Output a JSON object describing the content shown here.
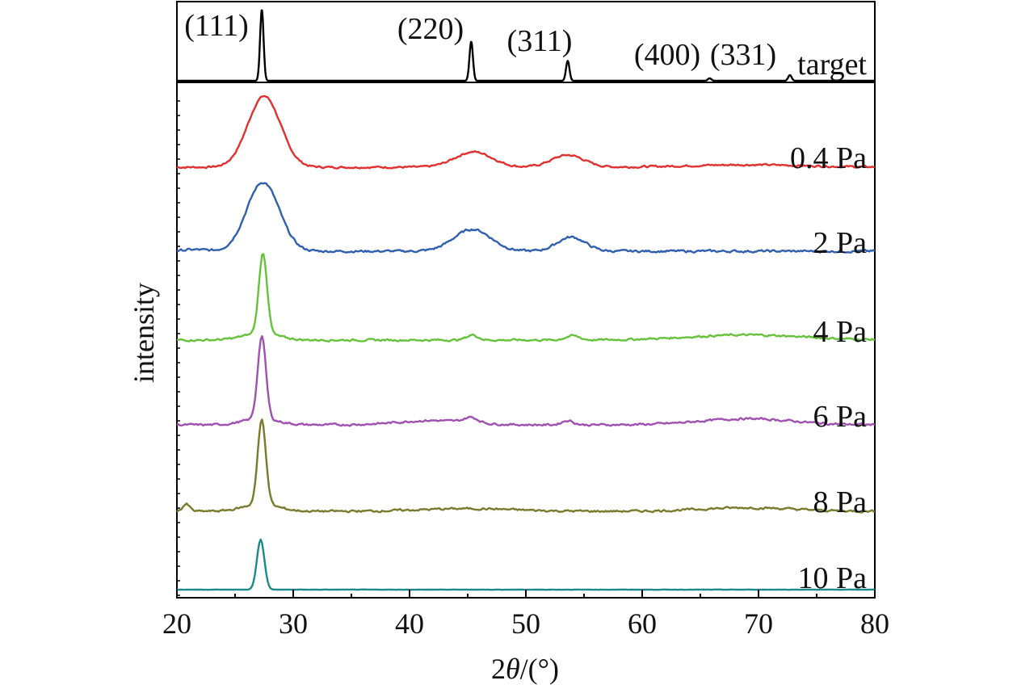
{
  "chart_data": {
    "type": "line",
    "title": "",
    "xlabel_prefix": "2",
    "xlabel_symbol": "θ",
    "xlabel_suffix": "/(°)",
    "ylabel": "intensity",
    "xlim": [
      20,
      80
    ],
    "x_ticks": [
      20,
      30,
      40,
      50,
      60,
      70,
      80
    ],
    "x_tick_labels": [
      "20",
      "30",
      "40",
      "50",
      "60",
      "70",
      "80"
    ],
    "peak_labels": [
      {
        "text": "(111)",
        "x": 27.3
      },
      {
        "text": "(220)",
        "x": 45.3
      },
      {
        "text": "(311)",
        "x": 53.6
      },
      {
        "text": "(400)",
        "x": 65.8
      },
      {
        "text": "(331)",
        "x": 72.7
      }
    ],
    "series": [
      {
        "name": "target",
        "color": "#000000",
        "baseline": 0.0,
        "noise": 0.0,
        "peaks": [
          [
            27.3,
            10.0,
            0.15
          ],
          [
            45.3,
            5.5,
            0.15
          ],
          [
            53.6,
            2.8,
            0.15
          ],
          [
            65.8,
            0.35,
            0.15
          ],
          [
            72.7,
            0.8,
            0.15
          ]
        ],
        "humps": []
      },
      {
        "name": "0.4 Pa",
        "color": "#e03030",
        "baseline": 0.0,
        "noise": 0.2,
        "peaks": [
          [
            27.5,
            8.8,
            1.4
          ],
          [
            45.5,
            1.9,
            1.6
          ],
          [
            53.6,
            1.5,
            1.4
          ]
        ],
        "humps": [
          [
            69.0,
            0.3,
            5.0
          ]
        ]
      },
      {
        "name": "2 Pa",
        "color": "#2f5fae",
        "baseline": 0.0,
        "noise": 0.25,
        "peaks": [
          [
            27.4,
            8.8,
            1.4
          ],
          [
            45.4,
            2.8,
            1.6
          ],
          [
            53.9,
            1.8,
            1.2
          ]
        ],
        "humps": [
          [
            21.5,
            0.2,
            1.0
          ]
        ]
      },
      {
        "name": "4 Pa",
        "color": "#66c23a",
        "baseline": 0.0,
        "noise": 0.2,
        "peaks": [
          [
            27.4,
            9.5,
            0.35
          ],
          [
            45.4,
            0.6,
            0.5
          ],
          [
            54.0,
            0.5,
            0.6
          ]
        ],
        "humps": [
          [
            27.2,
            0.8,
            1.5
          ],
          [
            69.0,
            0.6,
            5.0
          ]
        ]
      },
      {
        "name": "6 Pa",
        "color": "#a050b0",
        "baseline": 0.0,
        "noise": 0.2,
        "peaks": [
          [
            27.3,
            9.5,
            0.35
          ],
          [
            45.3,
            0.6,
            0.6
          ],
          [
            53.6,
            0.5,
            0.5
          ]
        ],
        "humps": [
          [
            27.2,
            0.7,
            1.5
          ],
          [
            42.0,
            0.5,
            3.0
          ],
          [
            69.0,
            0.7,
            4.0
          ]
        ]
      },
      {
        "name": "8 Pa",
        "color": "#7a7a2c",
        "baseline": 0.0,
        "noise": 0.2,
        "peaks": [
          [
            27.3,
            9.5,
            0.35
          ],
          [
            20.8,
            0.8,
            0.3
          ]
        ],
        "humps": [
          [
            27.2,
            0.8,
            1.5
          ],
          [
            45.0,
            0.3,
            4.0
          ],
          [
            69.0,
            0.4,
            4.0
          ]
        ]
      },
      {
        "name": "10 Pa",
        "color": "#1d8a8a",
        "baseline": 0.0,
        "noise": 0.05,
        "peaks": [
          [
            27.2,
            10.0,
            0.32
          ]
        ],
        "humps": []
      }
    ]
  }
}
